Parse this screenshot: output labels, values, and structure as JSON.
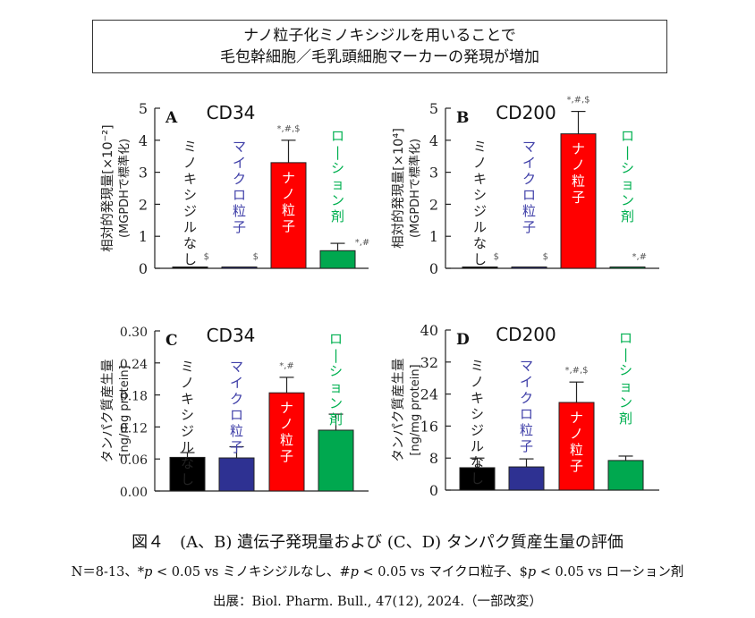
{
  "headline": {
    "line1": "ナノ粒子化ミノキシジルを用いることで",
    "line2": "毛包幹細胞／毛乳頭細胞マーカーの発現が増加"
  },
  "groups": [
    {
      "label": "ミノキシジルなし",
      "color": "#000000",
      "label_color": "#222222"
    },
    {
      "label": "マイクロ粒子",
      "color": "#2e3192",
      "label_color": "#3f3fa8"
    },
    {
      "label": "ナノ粒子",
      "color": "#ff0000",
      "label_color": "#ffffff"
    },
    {
      "label": "ローション剤",
      "color": "#00a84f",
      "label_color": "#00b050"
    }
  ],
  "chart_data": [
    {
      "type": "bar",
      "panel": "A",
      "title": "CD34",
      "ylabel": "相対的発現量[×10⁻²]",
      "ylabel2": "(MGPDHで標準化)",
      "ylim": [
        0,
        5
      ],
      "yticks": [
        "0",
        "1",
        "2",
        "3",
        "4",
        "5"
      ],
      "categories": [
        "ミノキシジルなし",
        "マイクロ粒子",
        "ナノ粒子",
        "ローション剤"
      ],
      "values": [
        0.02,
        0.02,
        3.3,
        0.55
      ],
      "errors": [
        0,
        0,
        0.7,
        0.23
      ],
      "significance": [
        "$",
        "$",
        "*,#,$",
        "*,#"
      ]
    },
    {
      "type": "bar",
      "panel": "B",
      "title": "CD200",
      "ylabel": "相対的発現量[×10⁴]",
      "ylabel2": "(MGPDHで標準化)",
      "ylim": [
        0,
        5
      ],
      "yticks": [
        "0",
        "1",
        "2",
        "3",
        "4",
        "5"
      ],
      "categories": [
        "ミノキシジルなし",
        "マイクロ粒子",
        "ナノ粒子",
        "ローション剤"
      ],
      "values": [
        0.02,
        0.02,
        4.2,
        0.04
      ],
      "errors": [
        0,
        0,
        0.7,
        0
      ],
      "significance": [
        "$",
        "$",
        "*,#,$",
        "*,#"
      ]
    },
    {
      "type": "bar",
      "panel": "C",
      "title": "CD34",
      "ylabel": "タンパク質産生量",
      "ylabel2": "[ng/mg protein]",
      "ylim": [
        0,
        0.3
      ],
      "yticks": [
        "0.00",
        "0.06",
        "0.12",
        "0.18",
        "0.24",
        "0.30"
      ],
      "categories": [
        "ミノキシジルなし",
        "マイクロ粒子",
        "ナノ粒子",
        "ローション剤"
      ],
      "values": [
        0.063,
        0.062,
        0.184,
        0.114
      ],
      "errors": [
        0.009,
        0.021,
        0.029,
        0.03
      ],
      "significance": [
        "",
        "",
        "*,#",
        ""
      ]
    },
    {
      "type": "bar",
      "panel": "D",
      "title": "CD200",
      "ylabel": "タンパク質産生量",
      "ylabel2": "[ng/mg protein]",
      "ylim": [
        0,
        40
      ],
      "yticks": [
        "0",
        "8",
        "16",
        "24",
        "32",
        "40"
      ],
      "categories": [
        "ミノキシジルなし",
        "マイクロ粒子",
        "ナノ粒子",
        "ローション剤"
      ],
      "values": [
        5.6,
        5.8,
        21.9,
        7.4
      ],
      "errors": [
        2.4,
        2.0,
        5.1,
        1.1
      ],
      "significance": [
        "",
        "",
        "*,#,$",
        ""
      ]
    }
  ],
  "caption": {
    "title": "図４　(A、B) 遺伝子発現量および (C、D) タンパク質産生量の評価",
    "note_prefix": "N＝8-13、*",
    "note_p1": "p",
    "note_mid1": " < 0.05 vs ミノキシジルなし、#",
    "note_p2": "p",
    "note_mid2": " < 0.05 vs マイクロ粒子、$",
    "note_p3": "p",
    "note_end": " < 0.05 vs ローション剤",
    "source": "出展：Biol. Pharm. Bull., 47(12), 2024.（一部改変）"
  }
}
